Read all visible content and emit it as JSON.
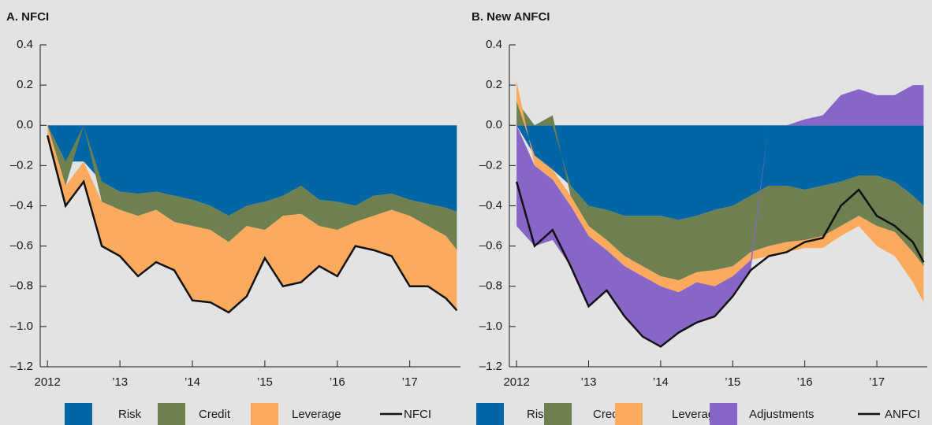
{
  "chart_data": [
    {
      "type": "area",
      "title": "A. NFCI",
      "x": [
        2012.0,
        2012.25,
        2012.5,
        2012.75,
        2013.0,
        2013.25,
        2013.5,
        2013.75,
        2014.0,
        2014.25,
        2014.5,
        2014.75,
        2015.0,
        2015.25,
        2015.5,
        2015.75,
        2016.0,
        2016.25,
        2016.5,
        2016.75,
        2017.0,
        2017.25,
        2017.5,
        2017.65
      ],
      "xlim": [
        2011.9,
        2017.7
      ],
      "xticks": [
        {
          "value": 2012,
          "label": "2012"
        },
        {
          "value": 2013,
          "label": "’13"
        },
        {
          "value": 2014,
          "label": "’14"
        },
        {
          "value": 2015,
          "label": "’15"
        },
        {
          "value": 2016,
          "label": "’16"
        },
        {
          "value": 2017,
          "label": "’17"
        }
      ],
      "ylim": [
        -1.2,
        0.4
      ],
      "yticks": [
        {
          "value": -1.2,
          "label": "–1.2"
        },
        {
          "value": -1.0,
          "label": "–1.0"
        },
        {
          "value": -0.8,
          "label": "–0.8"
        },
        {
          "value": -0.6,
          "label": "–0.6"
        },
        {
          "value": -0.4,
          "label": "–0.4"
        },
        {
          "value": -0.2,
          "label": "–0.2"
        },
        {
          "value": 0,
          "label": "0.0"
        },
        0.2,
        0.4
      ],
      "series": [
        {
          "name": "Risk",
          "color": "#0066a6",
          "values": [
            0,
            -0.18,
            -0.18,
            -0.28,
            -0.33,
            -0.34,
            -0.33,
            -0.35,
            -0.37,
            -0.4,
            -0.45,
            -0.4,
            -0.38,
            -0.35,
            -0.3,
            -0.37,
            -0.38,
            -0.4,
            -0.35,
            -0.34,
            -0.37,
            -0.39,
            -0.41,
            -0.43
          ]
        },
        {
          "name": "Credit",
          "color": "#6e7f50",
          "values": [
            0,
            -0.12,
            0,
            -0.1,
            -0.09,
            -0.11,
            -0.09,
            -0.13,
            -0.13,
            -0.12,
            -0.13,
            -0.1,
            -0.14,
            -0.1,
            -0.14,
            -0.13,
            -0.14,
            -0.08,
            -0.1,
            -0.08,
            -0.08,
            -0.11,
            -0.14,
            -0.19
          ]
        },
        {
          "name": "Leverage",
          "color": "#fbaa5e",
          "values": [
            -0.05,
            -0.1,
            -0.1,
            -0.22,
            -0.23,
            -0.3,
            -0.26,
            -0.24,
            -0.37,
            -0.36,
            -0.35,
            -0.35,
            -0.14,
            -0.35,
            -0.34,
            -0.2,
            -0.23,
            -0.12,
            -0.17,
            -0.23,
            -0.35,
            -0.3,
            -0.31,
            -0.3
          ]
        },
        {
          "name": "NFCI",
          "color": "#111111",
          "type": "line",
          "values": [
            -0.05,
            -0.4,
            -0.28,
            -0.6,
            -0.65,
            -0.75,
            -0.68,
            -0.72,
            -0.87,
            -0.88,
            -0.93,
            -0.85,
            -0.66,
            -0.8,
            -0.78,
            -0.7,
            -0.75,
            -0.6,
            -0.62,
            -0.65,
            -0.8,
            -0.8,
            -0.86,
            -0.92
          ]
        }
      ]
    },
    {
      "type": "area",
      "title": "B. New ANFCI",
      "x": [
        2012.0,
        2012.25,
        2012.5,
        2012.75,
        2013.0,
        2013.25,
        2013.5,
        2013.75,
        2014.0,
        2014.25,
        2014.5,
        2014.75,
        2015.0,
        2015.25,
        2015.5,
        2015.75,
        2016.0,
        2016.25,
        2016.5,
        2016.75,
        2017.0,
        2017.25,
        2017.5,
        2017.65
      ],
      "xlim": [
        2011.9,
        2017.7
      ],
      "xticks": [
        {
          "value": 2012,
          "label": "2012"
        },
        {
          "value": 2013,
          "label": "’13"
        },
        {
          "value": 2014,
          "label": "’14"
        },
        {
          "value": 2015,
          "label": "’15"
        },
        {
          "value": 2016,
          "label": "’16"
        },
        {
          "value": 2017,
          "label": "’17"
        }
      ],
      "ylim": [
        -1.2,
        0.4
      ],
      "yticks": [
        {
          "value": -1.2,
          "label": "–1.2"
        },
        {
          "value": -1.0,
          "label": "–1.0"
        },
        {
          "value": -0.8,
          "label": "–0.8"
        },
        {
          "value": -0.6,
          "label": "–0.6"
        },
        {
          "value": -0.4,
          "label": "–0.4"
        },
        {
          "value": -0.2,
          "label": "–0.2"
        },
        {
          "value": 0,
          "label": "0.0"
        },
        0.2,
        0.4
      ],
      "series": [
        {
          "name": "Risk",
          "color": "#0066a6",
          "values": [
            0,
            -0.15,
            -0.22,
            -0.3,
            -0.4,
            -0.42,
            -0.45,
            -0.45,
            -0.45,
            -0.47,
            -0.45,
            -0.42,
            -0.4,
            -0.35,
            -0.3,
            -0.3,
            -0.32,
            -0.3,
            -0.28,
            -0.25,
            -0.25,
            -0.28,
            -0.35,
            -0.4
          ]
        },
        {
          "name": "Credit",
          "color": "#6e7f50",
          "values": [
            0.12,
            0,
            0.05,
            -0.05,
            -0.1,
            -0.15,
            -0.2,
            -0.25,
            -0.3,
            -0.3,
            -0.28,
            -0.3,
            -0.3,
            -0.28,
            -0.3,
            -0.28,
            -0.25,
            -0.25,
            -0.22,
            -0.2,
            -0.25,
            -0.25,
            -0.28,
            -0.3
          ]
        },
        {
          "name": "Leverage",
          "color": "#fbaa5e",
          "values": [
            0.1,
            -0.05,
            -0.05,
            -0.05,
            -0.05,
            -0.05,
            -0.05,
            -0.05,
            -0.05,
            -0.06,
            -0.05,
            -0.08,
            -0.05,
            -0.04,
            -0.05,
            -0.05,
            -0.04,
            -0.06,
            -0.05,
            -0.05,
            -0.1,
            -0.12,
            -0.15,
            -0.18
          ]
        },
        {
          "name": "Adjustments",
          "color": "#8766c8",
          "values": [
            -0.5,
            -0.4,
            -0.3,
            -0.3,
            -0.35,
            -0.2,
            -0.25,
            -0.3,
            -0.3,
            -0.2,
            -0.2,
            -0.15,
            -0.1,
            -0.05,
            0,
            0,
            0.03,
            0.05,
            0.15,
            0.18,
            0.15,
            0.15,
            0.2,
            0.2
          ]
        },
        {
          "name": "ANFCI",
          "color": "#111111",
          "type": "line",
          "values": [
            -0.28,
            -0.6,
            -0.52,
            -0.7,
            -0.9,
            -0.82,
            -0.95,
            -1.05,
            -1.1,
            -1.03,
            -0.98,
            -0.95,
            -0.85,
            -0.72,
            -0.65,
            -0.63,
            -0.58,
            -0.56,
            -0.4,
            -0.32,
            -0.45,
            -0.5,
            -0.58,
            -0.68
          ]
        }
      ]
    }
  ]
}
